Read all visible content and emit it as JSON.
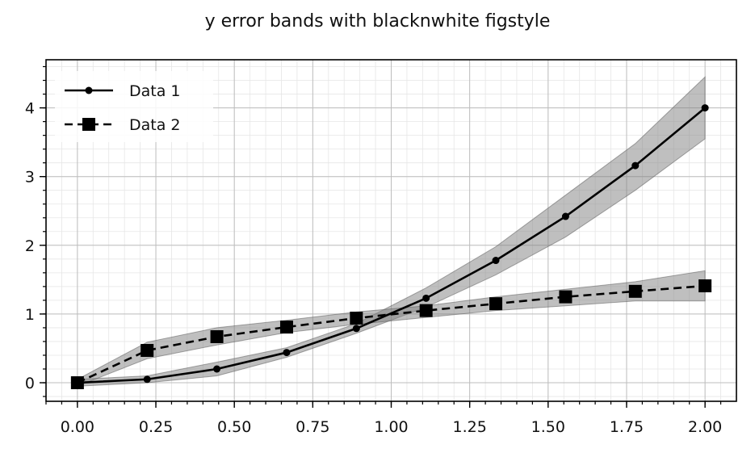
{
  "chart_data": {
    "type": "line",
    "title": "y error bands with blacknwhite figstyle",
    "xlabel": "",
    "ylabel": "",
    "xlim": [
      -0.1,
      2.1
    ],
    "ylim": [
      -0.27,
      4.7
    ],
    "x": [
      0.0,
      0.2222,
      0.4444,
      0.6667,
      0.8889,
      1.1111,
      1.3333,
      1.5556,
      1.7778,
      2.0
    ],
    "xticks": [
      0.0,
      0.25,
      0.5,
      0.75,
      1.0,
      1.25,
      1.5,
      1.75,
      2.0
    ],
    "xtick_labels": [
      "0.00",
      "0.25",
      "0.50",
      "0.75",
      "1.00",
      "1.25",
      "1.50",
      "1.75",
      "2.00"
    ],
    "yticks": [
      0,
      1,
      2,
      3,
      4
    ],
    "ytick_labels": [
      "0",
      "1",
      "2",
      "3",
      "4"
    ],
    "grid": true,
    "minor_grid": true,
    "legend_position": "top-left",
    "series": [
      {
        "name": "Data 1",
        "style": "solid",
        "marker": "circle",
        "color": "#000000",
        "values": [
          0.0,
          0.05,
          0.2,
          0.44,
          0.79,
          1.23,
          1.78,
          2.42,
          3.16,
          4.0
        ],
        "lower": [
          -0.05,
          0.0,
          0.1,
          0.37,
          0.72,
          1.1,
          1.57,
          2.12,
          2.8,
          3.55
        ],
        "upper": [
          0.05,
          0.1,
          0.3,
          0.51,
          0.86,
          1.38,
          1.98,
          2.73,
          3.48,
          4.45
        ]
      },
      {
        "name": "Data 2",
        "style": "dashed",
        "marker": "square",
        "color": "#000000",
        "values": [
          0.0,
          0.47,
          0.67,
          0.81,
          0.94,
          1.05,
          1.15,
          1.25,
          1.33,
          1.41
        ],
        "lower": [
          -0.05,
          0.35,
          0.55,
          0.73,
          0.85,
          0.95,
          1.05,
          1.12,
          1.19,
          1.19
        ],
        "upper": [
          0.05,
          0.59,
          0.8,
          0.91,
          1.03,
          1.12,
          1.25,
          1.36,
          1.47,
          1.63
        ]
      }
    ],
    "band_color": "#808080"
  }
}
